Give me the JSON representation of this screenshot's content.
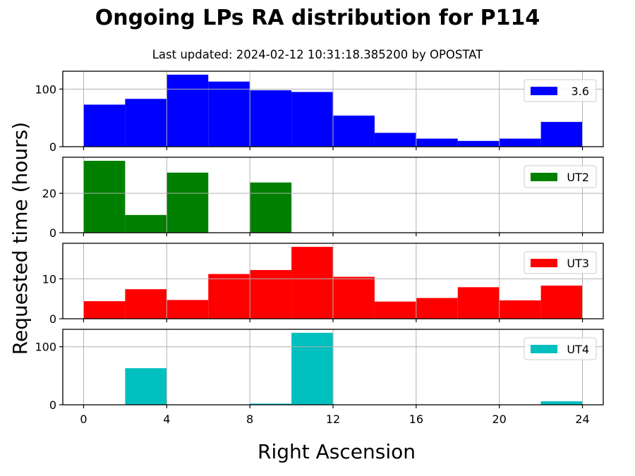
{
  "header": {
    "title": "Ongoing LPs RA distribution for P114",
    "subtitle": "Last updated: 2024-02-12 10:31:18.385200 by OPOSTAT"
  },
  "chart_data": {
    "type": "bar",
    "subtype": "stacked-histogram-panels",
    "xlabel": "Right Ascension",
    "ylabel": "Requested time (hours)",
    "xlim": [
      -1,
      25
    ],
    "xticks": [
      0,
      4,
      8,
      12,
      16,
      20,
      24
    ],
    "bin_edges": [
      0,
      2,
      4,
      6,
      8,
      10,
      12,
      14,
      16,
      18,
      20,
      22,
      24
    ],
    "grid": true,
    "legend_position": "upper right",
    "panels": [
      {
        "name": "3.6",
        "color": "#0000ff",
        "values": [
          73,
          83,
          125,
          113,
          98,
          95,
          54,
          24,
          14,
          10,
          14,
          43
        ],
        "ylim": [
          0,
          131
        ],
        "yticks": [
          0,
          100
        ]
      },
      {
        "name": "UT2",
        "color": "#008000",
        "values": [
          36.5,
          9,
          30.5,
          0,
          25.5,
          0,
          0,
          0,
          0,
          0,
          0,
          0
        ],
        "ylim": [
          0,
          38.3
        ],
        "yticks": [
          0,
          20
        ]
      },
      {
        "name": "UT3",
        "color": "#ff0000",
        "values": [
          4.4,
          7.4,
          4.7,
          11.2,
          12.2,
          18.0,
          10.5,
          4.3,
          5.2,
          7.9,
          4.6,
          8.3
        ],
        "ylim": [
          0,
          18.9
        ],
        "yticks": [
          0,
          10
        ]
      },
      {
        "name": "UT4",
        "color": "#00bfbf",
        "values": [
          0,
          63,
          0,
          0,
          2,
          124,
          0,
          0,
          0,
          0,
          0,
          6
        ],
        "ylim": [
          0,
          130
        ],
        "yticks": [
          0,
          100
        ]
      }
    ]
  }
}
